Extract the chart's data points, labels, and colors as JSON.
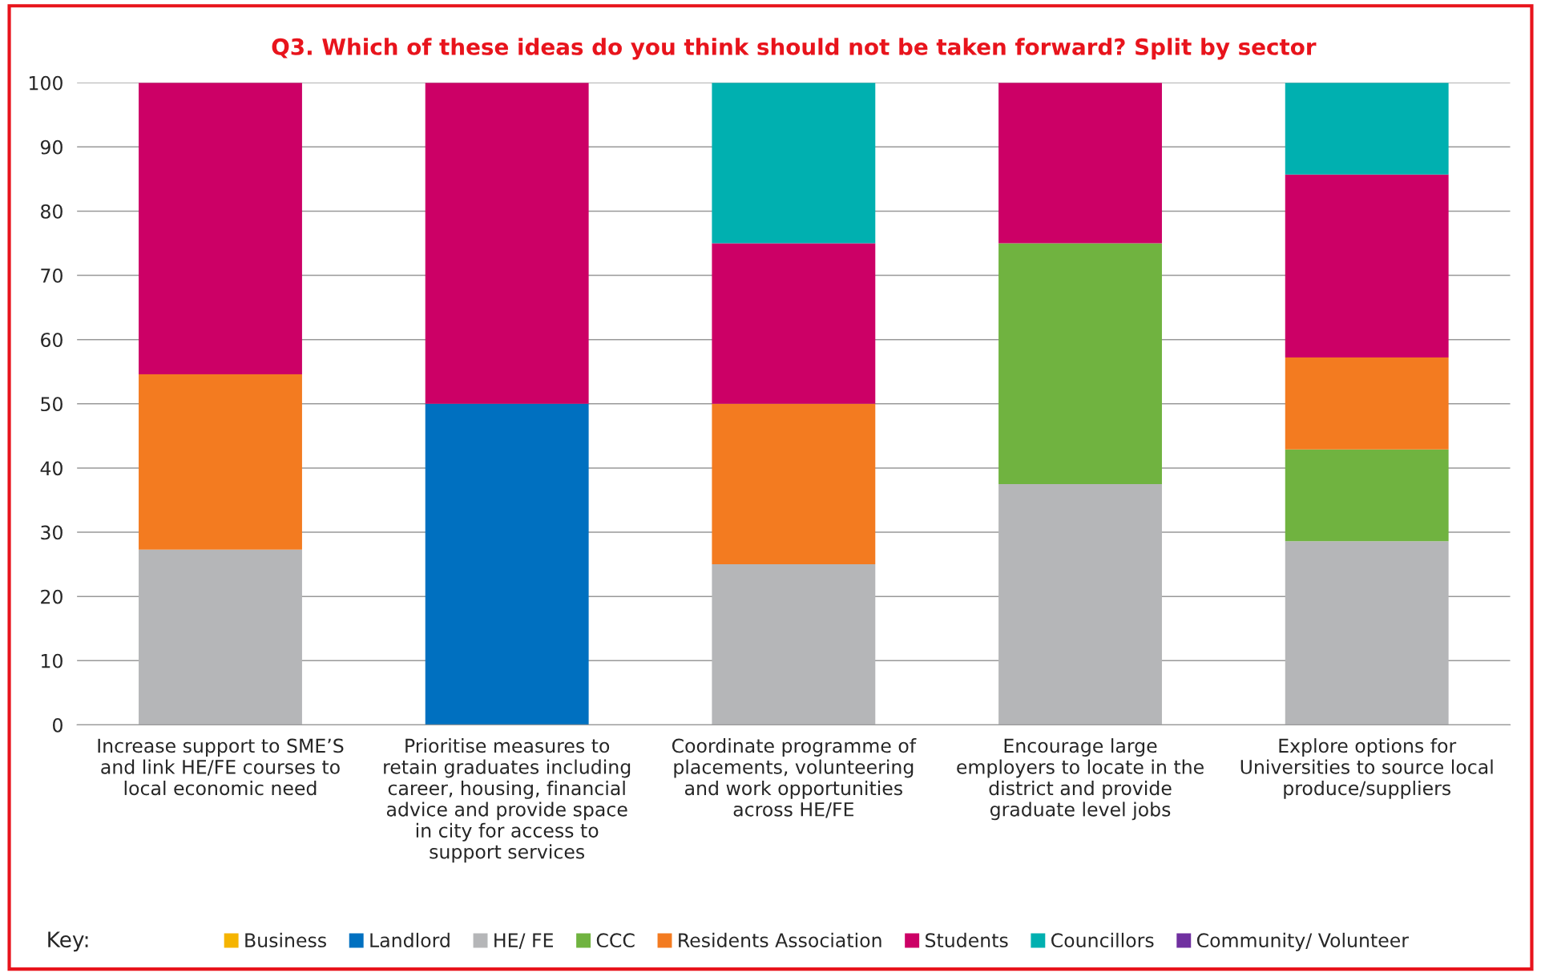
{
  "chart_data": {
    "type": "bar",
    "stacked": true,
    "title": "Q3. Which of these ideas do you think should not be taken forward? Split by sector",
    "categories": [
      "Increase support to SME’S\nand link HE/FE courses to\nlocal economic need",
      "Prioritise measures to\nretain graduates including\ncareer, housing, financial\nadvice and provide space\nin city for access to\nsupport services",
      "Coordinate programme of\nplacements, volunteering\nand work opportunities\nacross HE/FE",
      "Encourage large\nemployers to locate in the\ndistrict and provide\ngraduate level jobs",
      "Explore options for\nUniversities to source local\nproduce/suppliers"
    ],
    "series": [
      {
        "name": "Business",
        "color": "#f5b400",
        "values": [
          null,
          null,
          null,
          null,
          null
        ]
      },
      {
        "name": "Landlord",
        "color": "#0070c0",
        "values": [
          null,
          50,
          null,
          null,
          null
        ]
      },
      {
        "name": "HE/ FE",
        "color": "#b5b6b8",
        "values": [
          27.3,
          null,
          25,
          37.5,
          28.6
        ]
      },
      {
        "name": "CCC",
        "color": "#70b340",
        "values": [
          null,
          null,
          null,
          37.5,
          14.3
        ]
      },
      {
        "name": "Residents Association",
        "color": "#f37b20",
        "values": [
          27.3,
          null,
          25,
          null,
          14.3
        ]
      },
      {
        "name": "Students",
        "color": "#cc0066",
        "values": [
          45.4,
          50,
          25,
          25,
          28.5
        ]
      },
      {
        "name": "Councillors",
        "color": "#00b0b0",
        "values": [
          null,
          null,
          25,
          null,
          14.3
        ]
      },
      {
        "name": "Community/ Volunteer",
        "color": "#7030a0",
        "values": [
          null,
          null,
          null,
          null,
          null
        ]
      }
    ],
    "ylim": [
      0,
      100
    ],
    "yticks": [
      0,
      10,
      20,
      30,
      40,
      50,
      60,
      70,
      80,
      90,
      100
    ],
    "grid": "y",
    "legend": "bottom",
    "legend_title": "Key:"
  }
}
